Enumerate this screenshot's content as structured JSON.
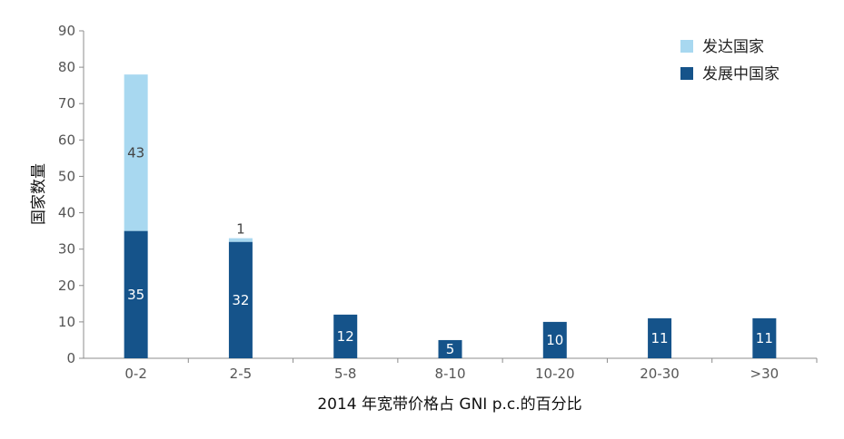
{
  "chart_data": {
    "type": "bar",
    "stacked": true,
    "categories": [
      "0-2",
      "2-5",
      "5-8",
      "8-10",
      "10-20",
      "20-30",
      ">30"
    ],
    "series": [
      {
        "name": "发展中国家",
        "values": [
          35,
          32,
          12,
          5,
          10,
          11,
          11
        ],
        "color": "#15538a"
      },
      {
        "name": "发达国家",
        "values": [
          43,
          1,
          0,
          0,
          0,
          0,
          0
        ],
        "color": "#a8d8f0"
      }
    ],
    "data_labels": {
      "发展中国家": [
        "35",
        "32",
        "12",
        "5",
        "10",
        "11",
        "11"
      ],
      "发达国家": [
        "43",
        "1",
        "",
        "",
        "",
        "",
        ""
      ]
    },
    "title": "",
    "xlabel": "2014 年宽带价格占 GNI p.c.的百分比",
    "ylabel": "国家数量",
    "ylim": [
      0,
      90
    ],
    "yticks": [
      0,
      10,
      20,
      30,
      40,
      50,
      60,
      70,
      80,
      90
    ],
    "grid": false,
    "legend_position": "top-right",
    "legend_order": [
      "发达国家",
      "发展中国家"
    ]
  }
}
